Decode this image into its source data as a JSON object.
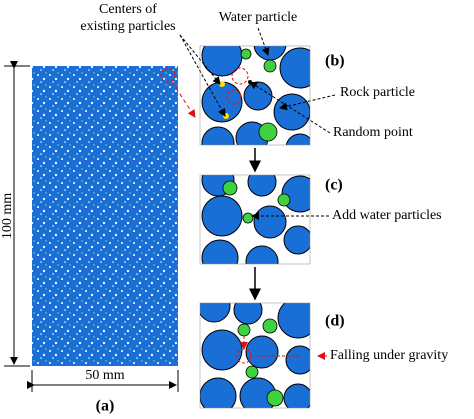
{
  "panel_a": {
    "label": "(a)",
    "height_label": "100 mm",
    "width_label": "50 mm"
  },
  "panel_b": {
    "label": "(b)",
    "centers_label": [
      "Centers of",
      "existing particles"
    ],
    "water_label": "Water particle",
    "rock_label": "Rock particle",
    "random_label": "Random point"
  },
  "panel_c": {
    "label": "(c)",
    "add_label": "Add water particles"
  },
  "panel_d": {
    "label": "(d)",
    "fall_label": "Falling under gravity"
  }
}
